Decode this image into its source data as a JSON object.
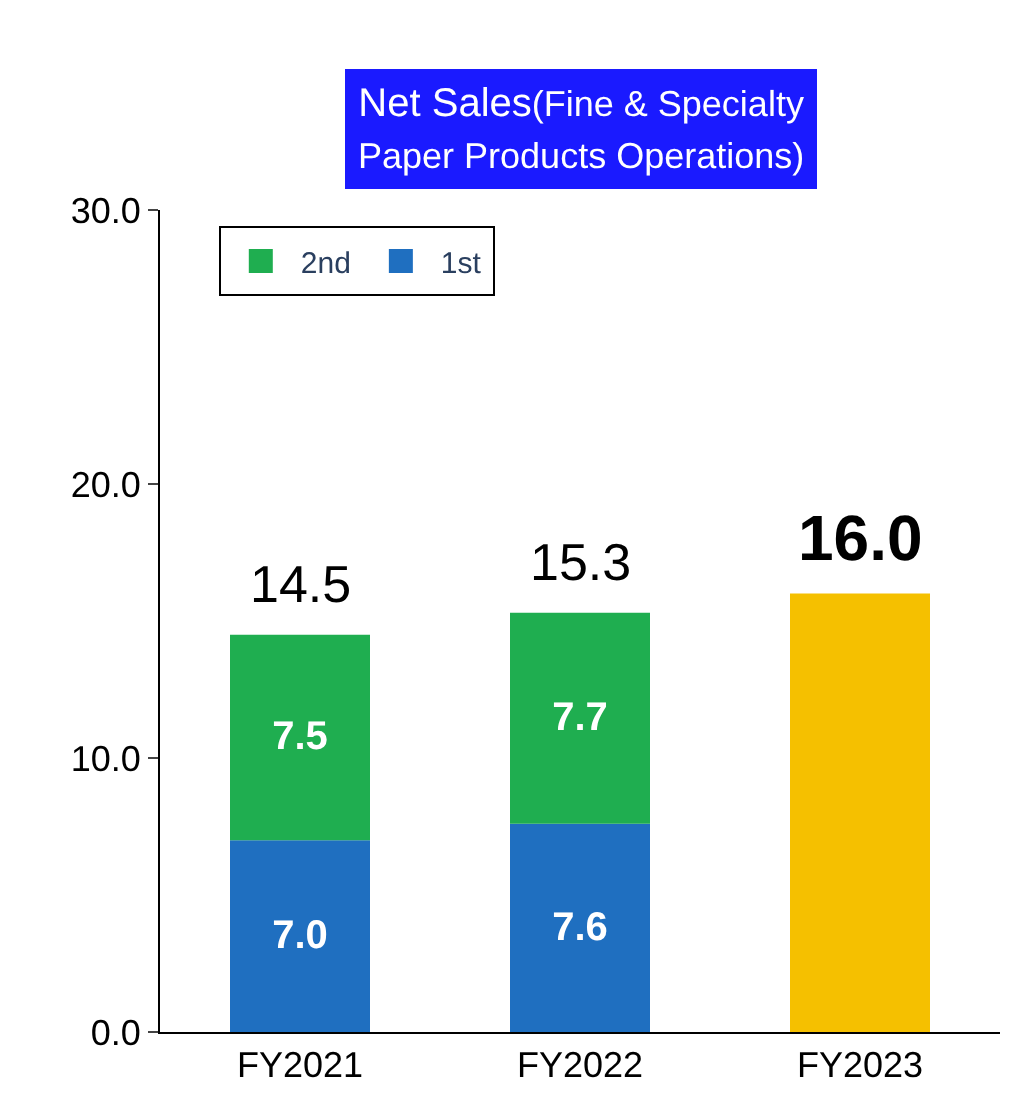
{
  "chart_data": {
    "type": "bar",
    "stacked": true,
    "title": "Net Sales(Fine & Specialty Paper Products Operations)",
    "categories": [
      "FY2021",
      "FY2022",
      "FY2023"
    ],
    "series": [
      {
        "name": "1st",
        "color": "#1f6fc0",
        "values": [
          7.0,
          7.6,
          null
        ],
        "value_labels": [
          "7.0",
          "7.6",
          null
        ]
      },
      {
        "name": "2nd",
        "color": "#1fae50",
        "values": [
          7.5,
          7.7,
          null
        ],
        "value_labels": [
          "7.5",
          "7.7",
          null
        ]
      },
      {
        "color": "#f5c000",
        "values": [
          null,
          null,
          16.0
        ]
      }
    ],
    "totals": [
      "14.5",
      "15.3",
      "16.0"
    ],
    "ylim": [
      0,
      30
    ],
    "yticks": [
      {
        "value": 0,
        "label": "0.0"
      },
      {
        "value": 10,
        "label": "10.0"
      },
      {
        "value": 20,
        "label": "20.0"
      },
      {
        "value": 30,
        "label": "30.0"
      }
    ],
    "legend": "top left"
  }
}
